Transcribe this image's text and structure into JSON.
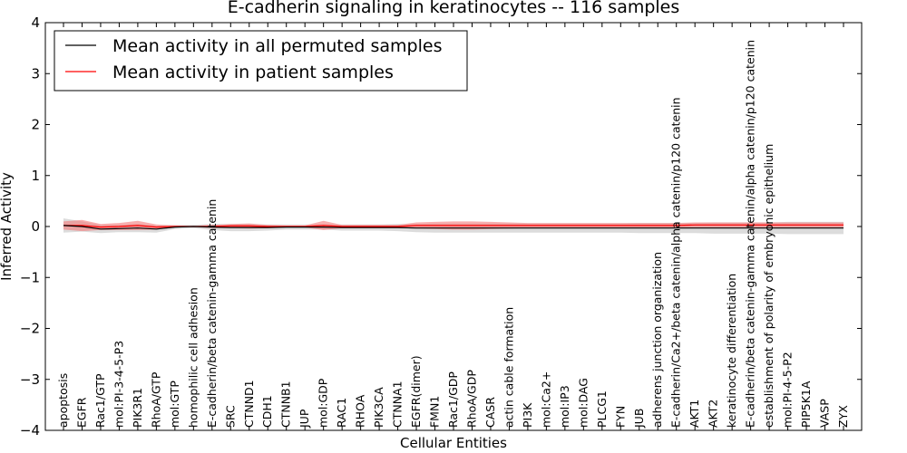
{
  "chart_data": {
    "type": "line",
    "title": "E-cadherin signaling in keratinocytes -- 116 samples",
    "xlabel": "Cellular Entities",
    "ylabel": "Inferred Activity",
    "ylim": [
      -4,
      4
    ],
    "yticks": [
      "−4",
      "−3",
      "−2",
      "−1",
      "0",
      "1",
      "2",
      "3",
      "4"
    ],
    "ytick_values": [
      -4,
      -3,
      -2,
      -1,
      0,
      1,
      2,
      3,
      4
    ],
    "grid": false,
    "legend_position": "top-left",
    "categories": [
      "apoptosis",
      "EGFR",
      "Rac1/GTP",
      "mol:PI-3-4-5-P3",
      "PIK3R1",
      "RhoA/GTP",
      "mol:GTP",
      "homophilic cell adhesion",
      "E-cadherin/beta catenin-gamma catenin",
      "SRC",
      "CTNND1",
      "CDH1",
      "CTNNB1",
      "JUP",
      "mol:GDP",
      "RAC1",
      "RHOA",
      "PIK3CA",
      "CTNNA1",
      "EGFR(dimer)",
      "FMN1",
      "Rac1/GDP",
      "RhoA/GDP",
      "CASR",
      "actin cable formation",
      "PI3K",
      "mol:Ca2+",
      "mol:IP3",
      "mol:DAG",
      "PLCG1",
      "FYN",
      "JUB",
      "adherens junction organization",
      "E-cadherin/Ca2+/beta catenin/alpha catenin/p120 catenin",
      "AKT1",
      "AKT2",
      "keratinocyte differentiation",
      "E-cadherin/beta catenin-gamma catenin/alpha catenin/p120 catenin",
      "establishment of polarity of embryonic epithelium",
      "mol:PI-4-5-P2",
      "PIP5K1A",
      "VASP",
      "ZYX"
    ],
    "series": [
      {
        "name": "Mean activity in all permuted samples",
        "color": "#000000",
        "band_color": "#c0c0c0",
        "values": [
          0.02,
          0.0,
          -0.05,
          -0.04,
          -0.03,
          -0.05,
          -0.01,
          0.0,
          -0.01,
          -0.02,
          -0.02,
          -0.02,
          -0.01,
          -0.01,
          -0.01,
          -0.02,
          -0.02,
          -0.02,
          -0.02,
          -0.03,
          -0.03,
          -0.03,
          -0.03,
          -0.03,
          -0.03,
          -0.03,
          -0.03,
          -0.03,
          -0.03,
          -0.03,
          -0.03,
          -0.03,
          -0.03,
          -0.03,
          -0.03,
          -0.03,
          -0.03,
          -0.03,
          -0.03,
          -0.03,
          -0.03,
          -0.03,
          -0.03
        ],
        "band": [
          0.14,
          0.1,
          0.08,
          0.07,
          0.08,
          0.07,
          0.04,
          0.03,
          0.06,
          0.07,
          0.07,
          0.06,
          0.05,
          0.05,
          0.05,
          0.06,
          0.06,
          0.06,
          0.07,
          0.08,
          0.09,
          0.09,
          0.09,
          0.09,
          0.09,
          0.09,
          0.09,
          0.09,
          0.09,
          0.09,
          0.09,
          0.1,
          0.1,
          0.1,
          0.1,
          0.11,
          0.11,
          0.11,
          0.11,
          0.12,
          0.12,
          0.12,
          0.12
        ]
      },
      {
        "name": "Mean activity in patient samples",
        "color": "#ff0000",
        "band_color": "#f47a7a",
        "values": [
          0.02,
          0.02,
          -0.01,
          0.0,
          0.02,
          -0.01,
          0.0,
          0.0,
          0.0,
          0.01,
          0.01,
          0.0,
          0.0,
          0.0,
          0.02,
          0.0,
          0.0,
          0.0,
          0.0,
          0.02,
          0.02,
          0.02,
          0.02,
          0.02,
          0.02,
          0.02,
          0.02,
          0.02,
          0.02,
          0.02,
          0.02,
          0.02,
          0.02,
          0.02,
          0.03,
          0.03,
          0.03,
          0.03,
          0.03,
          0.03,
          0.03,
          0.03,
          0.03
        ],
        "band": [
          0.08,
          0.11,
          0.06,
          0.07,
          0.09,
          0.05,
          0.02,
          0.01,
          0.03,
          0.04,
          0.05,
          0.03,
          0.02,
          0.02,
          0.09,
          0.03,
          0.03,
          0.03,
          0.03,
          0.06,
          0.07,
          0.08,
          0.08,
          0.07,
          0.06,
          0.05,
          0.05,
          0.05,
          0.05,
          0.05,
          0.05,
          0.05,
          0.05,
          0.05,
          0.05,
          0.05,
          0.05,
          0.05,
          0.05,
          0.05,
          0.05,
          0.05,
          0.05
        ]
      }
    ]
  }
}
